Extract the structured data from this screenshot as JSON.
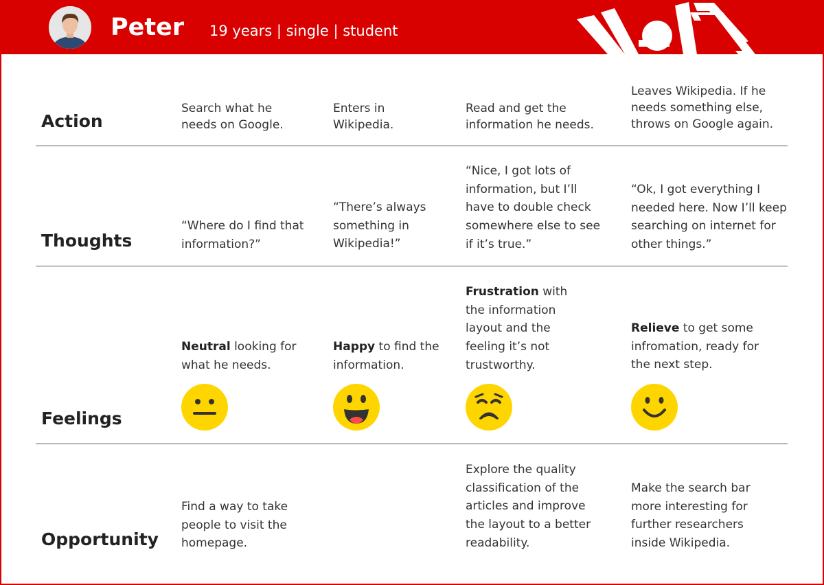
{
  "persona": {
    "name": "Peter",
    "details": "19 years | single | student",
    "avatar_icon": "person-avatar-icon",
    "logo_icon": "spider-logo-icon"
  },
  "rows": [
    {
      "label": "Action",
      "cells": [
        "Search what he needs on Google.",
        "Enters in Wikipedia.",
        "Read and get the information he needs.",
        "Leaves Wikipedia. If he needs something else, throws on Google again."
      ]
    },
    {
      "label": "Thoughts",
      "cells": [
        "“Where do I find that information?”",
        "“There’s always something in Wikipedia!”",
        "“Nice, I got lots of information, but I’ll have to double check somewhere else to see if it’s true.”",
        "“Ok, I got everything I needed here. Now I’ll keep searching on internet for other things.”"
      ]
    },
    {
      "label": "Feelings",
      "cells": [
        {
          "emphasis": "Neutral",
          "text": " looking for what he needs.",
          "emoji": "neutral-face-icon"
        },
        {
          "emphasis": "Happy",
          "text": " to find the information.",
          "emoji": "happy-face-icon"
        },
        {
          "emphasis": "Frustration",
          "text": " with the information layout and the feeling it’s not trustworthy.",
          "emoji": "frustrated-face-icon"
        },
        {
          "emphasis": "Relieve",
          "text": " to get some infromation, ready for the next step.",
          "emoji": "smiling-face-icon"
        }
      ]
    },
    {
      "label": "Opportunity",
      "cells": [
        "Find a way to take people to visit the homepage.",
        "",
        "Explore the quality classification of the articles and improve the layout to a better readability.",
        "Make the search bar more interesting for further researchers inside Wikipedia."
      ]
    }
  ],
  "colors": {
    "brand_red": "#d90000",
    "emoji_yellow": "#ffd500",
    "emoji_dark": "#333333",
    "tongue_red": "#ff4a4a"
  }
}
